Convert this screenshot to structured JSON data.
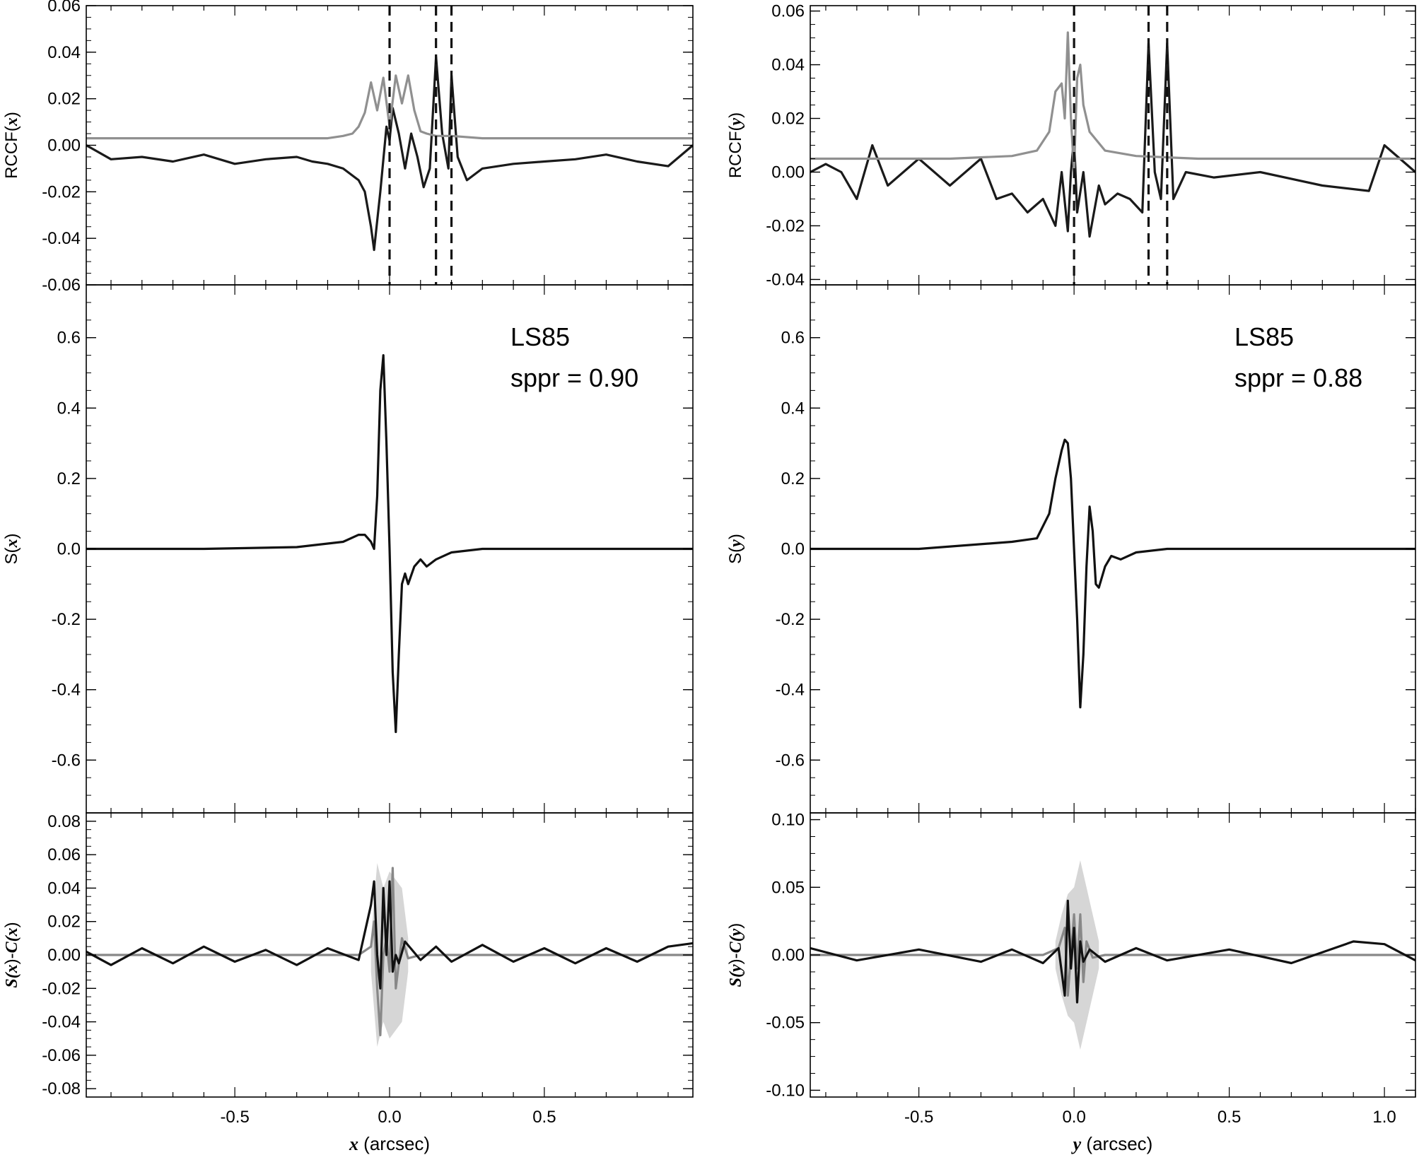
{
  "chart_data": [
    {
      "panel": "top-left",
      "type": "line",
      "ylabel_parts": [
        "RCCF(",
        "x",
        ")"
      ],
      "xlim": [
        -0.98,
        0.98
      ],
      "ylim": [
        -0.06,
        0.06
      ],
      "yticks": [
        "-0.06",
        "-0.04",
        "-0.02",
        "0.00",
        "0.02",
        "0.04",
        "0.06"
      ],
      "vlines": [
        0.0,
        0.15,
        0.2
      ],
      "series": [
        {
          "color": "#1a1a1a",
          "x": [
            -0.98,
            -0.9,
            -0.8,
            -0.7,
            -0.6,
            -0.5,
            -0.4,
            -0.3,
            -0.25,
            -0.2,
            -0.15,
            -0.1,
            -0.08,
            -0.06,
            -0.05,
            -0.03,
            -0.01,
            0.0,
            0.01,
            0.03,
            0.05,
            0.07,
            0.09,
            0.11,
            0.13,
            0.15,
            0.17,
            0.19,
            0.2,
            0.22,
            0.25,
            0.3,
            0.4,
            0.5,
            0.6,
            0.7,
            0.8,
            0.9,
            0.98
          ],
          "y": [
            0.0,
            -0.006,
            -0.005,
            -0.007,
            -0.004,
            -0.008,
            -0.006,
            -0.005,
            -0.007,
            -0.008,
            -0.01,
            -0.015,
            -0.02,
            -0.035,
            -0.045,
            -0.02,
            0.008,
            0.002,
            0.016,
            0.005,
            -0.01,
            0.005,
            -0.005,
            -0.018,
            -0.01,
            0.038,
            0.005,
            -0.01,
            0.03,
            -0.005,
            -0.015,
            -0.01,
            -0.008,
            -0.007,
            -0.006,
            -0.004,
            -0.007,
            -0.009,
            0.0
          ]
        },
        {
          "color": "#909090",
          "x": [
            -0.98,
            -0.5,
            -0.2,
            -0.15,
            -0.12,
            -0.1,
            -0.08,
            -0.06,
            -0.04,
            -0.02,
            0.0,
            0.02,
            0.04,
            0.06,
            0.08,
            0.1,
            0.12,
            0.15,
            0.2,
            0.3,
            0.5,
            0.98
          ],
          "y": [
            0.003,
            0.003,
            0.003,
            0.004,
            0.005,
            0.008,
            0.014,
            0.027,
            0.015,
            0.029,
            0.008,
            0.03,
            0.018,
            0.03,
            0.015,
            0.006,
            0.005,
            0.004,
            0.004,
            0.003,
            0.003,
            0.003
          ]
        }
      ]
    },
    {
      "panel": "middle-left",
      "type": "line",
      "ylabel_parts": [
        "S(",
        "x",
        ")"
      ],
      "annotation": [
        "LS85",
        "sppr = 0.90"
      ],
      "xlim": [
        -0.98,
        0.98
      ],
      "ylim": [
        -0.75,
        0.75
      ],
      "yticks": [
        "-0.6",
        "-0.4",
        "-0.2",
        "0.0",
        "0.2",
        "0.4",
        "0.6"
      ],
      "series": [
        {
          "color": "#111111",
          "x": [
            -0.98,
            -0.6,
            -0.3,
            -0.15,
            -0.1,
            -0.08,
            -0.06,
            -0.05,
            -0.04,
            -0.03,
            -0.02,
            -0.01,
            0.0,
            0.01,
            0.02,
            0.03,
            0.04,
            0.05,
            0.06,
            0.08,
            0.1,
            0.12,
            0.15,
            0.2,
            0.3,
            0.5,
            0.98
          ],
          "y": [
            0.0,
            0.0,
            0.005,
            0.02,
            0.04,
            0.04,
            0.02,
            0.0,
            0.15,
            0.45,
            0.55,
            0.3,
            0.0,
            -0.35,
            -0.52,
            -0.3,
            -0.1,
            -0.07,
            -0.1,
            -0.05,
            -0.03,
            -0.05,
            -0.03,
            -0.01,
            0.0,
            0.0,
            0.0
          ]
        }
      ]
    },
    {
      "panel": "bottom-left",
      "type": "line",
      "ylabel_parts": [
        "S(",
        "x",
        ")-",
        "C(",
        "x",
        ")"
      ],
      "xlim": [
        -0.98,
        0.98
      ],
      "ylim": [
        -0.085,
        0.085
      ],
      "yticks": [
        "-0.08",
        "-0.06",
        "-0.04",
        "-0.02",
        "0.00",
        "0.02",
        "0.04",
        "0.06",
        "0.08"
      ],
      "xticks": [
        "-0.5",
        "0.0",
        "0.5"
      ],
      "xlabel_parts": [
        "x",
        " (arcsec)"
      ],
      "band": {
        "x": [
          -0.06,
          -0.04,
          -0.02,
          0.0,
          0.02,
          0.04,
          0.06
        ],
        "halfwidth": [
          0.01,
          0.055,
          0.04,
          0.05,
          0.045,
          0.04,
          0.01
        ]
      },
      "series": [
        {
          "color": "#888888",
          "x": [
            -0.98,
            -0.1,
            -0.06,
            -0.05,
            -0.04,
            -0.03,
            -0.02,
            -0.01,
            0.0,
            0.01,
            0.02,
            0.03,
            0.04,
            0.06,
            0.1,
            0.98
          ],
          "y": [
            0.0,
            0.0,
            0.005,
            0.02,
            -0.02,
            -0.048,
            0.0,
            0.01,
            -0.01,
            0.052,
            -0.02,
            -0.005,
            0.01,
            -0.002,
            0.0,
            0.0
          ]
        },
        {
          "color": "#111111",
          "x": [
            -0.98,
            -0.9,
            -0.8,
            -0.7,
            -0.6,
            -0.5,
            -0.4,
            -0.3,
            -0.2,
            -0.1,
            -0.06,
            -0.05,
            -0.04,
            -0.03,
            -0.02,
            -0.01,
            0.0,
            0.01,
            0.02,
            0.03,
            0.05,
            0.1,
            0.15,
            0.2,
            0.3,
            0.4,
            0.5,
            0.6,
            0.7,
            0.8,
            0.9,
            0.98
          ],
          "y": [
            0.002,
            -0.006,
            0.004,
            -0.005,
            0.005,
            -0.004,
            0.003,
            -0.006,
            0.004,
            -0.003,
            0.03,
            0.044,
            0.0,
            -0.02,
            0.04,
            0.0,
            0.044,
            -0.01,
            0.0,
            -0.005,
            0.008,
            -0.003,
            0.005,
            -0.004,
            0.006,
            -0.004,
            0.004,
            -0.005,
            0.004,
            -0.004,
            0.005,
            0.007
          ]
        }
      ]
    },
    {
      "panel": "top-right",
      "type": "line",
      "ylabel_parts": [
        "RCCF(",
        "y",
        ")"
      ],
      "xlim": [
        -0.85,
        1.1
      ],
      "ylim": [
        -0.042,
        0.062
      ],
      "yticks": [
        "-0.04",
        "-0.02",
        "0.00",
        "0.02",
        "0.04",
        "0.06"
      ],
      "vlines": [
        0.0,
        0.24,
        0.3
      ],
      "series": [
        {
          "color": "#1a1a1a",
          "x": [
            -0.85,
            -0.8,
            -0.75,
            -0.7,
            -0.65,
            -0.6,
            -0.5,
            -0.4,
            -0.3,
            -0.25,
            -0.2,
            -0.15,
            -0.1,
            -0.06,
            -0.04,
            -0.02,
            -0.01,
            0.0,
            0.01,
            0.03,
            0.05,
            0.08,
            0.1,
            0.14,
            0.18,
            0.22,
            0.24,
            0.26,
            0.28,
            0.3,
            0.32,
            0.36,
            0.45,
            0.6,
            0.8,
            0.95,
            1.0,
            1.1
          ],
          "y": [
            0.0,
            0.003,
            0.0,
            -0.01,
            0.01,
            -0.005,
            0.005,
            -0.005,
            0.005,
            -0.01,
            -0.008,
            -0.015,
            -0.01,
            -0.02,
            0.0,
            -0.022,
            0.0,
            0.013,
            -0.015,
            0.0,
            -0.024,
            -0.005,
            -0.012,
            -0.008,
            -0.01,
            -0.015,
            0.048,
            0.0,
            -0.01,
            0.048,
            -0.01,
            0.0,
            -0.002,
            0.0,
            -0.005,
            -0.007,
            0.01,
            0.0
          ]
        },
        {
          "color": "#909090",
          "x": [
            -0.85,
            -0.4,
            -0.2,
            -0.12,
            -0.08,
            -0.06,
            -0.04,
            -0.03,
            -0.02,
            -0.01,
            0.0,
            0.01,
            0.02,
            0.03,
            0.05,
            0.1,
            0.2,
            0.4,
            1.1
          ],
          "y": [
            0.005,
            0.005,
            0.006,
            0.008,
            0.015,
            0.03,
            0.033,
            0.02,
            0.052,
            0.02,
            0.0,
            0.035,
            0.04,
            0.025,
            0.015,
            0.008,
            0.006,
            0.005,
            0.005
          ]
        }
      ]
    },
    {
      "panel": "middle-right",
      "type": "line",
      "ylabel_parts": [
        "S(",
        "y",
        ")"
      ],
      "annotation": [
        "LS85",
        "sppr = 0.88"
      ],
      "xlim": [
        -0.85,
        1.1
      ],
      "ylim": [
        -0.75,
        0.75
      ],
      "yticks": [
        "-0.6",
        "-0.4",
        "-0.2",
        "0.0",
        "0.2",
        "0.4",
        "0.6"
      ],
      "series": [
        {
          "color": "#111111",
          "x": [
            -0.85,
            -0.5,
            -0.2,
            -0.12,
            -0.08,
            -0.06,
            -0.04,
            -0.03,
            -0.02,
            -0.01,
            0.0,
            0.01,
            0.02,
            0.03,
            0.04,
            0.05,
            0.06,
            0.07,
            0.08,
            0.1,
            0.12,
            0.15,
            0.2,
            0.3,
            0.5,
            1.1
          ],
          "y": [
            0.0,
            0.0,
            0.02,
            0.03,
            0.1,
            0.2,
            0.28,
            0.31,
            0.3,
            0.2,
            0.0,
            -0.2,
            -0.45,
            -0.3,
            -0.05,
            0.12,
            0.05,
            -0.1,
            -0.11,
            -0.05,
            -0.02,
            -0.03,
            -0.01,
            0.0,
            0.0,
            0.0
          ]
        }
      ]
    },
    {
      "panel": "bottom-right",
      "type": "line",
      "ylabel_parts": [
        "S(",
        "y",
        ")-",
        "C(",
        "y",
        ")"
      ],
      "xlim": [
        -0.85,
        1.1
      ],
      "ylim": [
        -0.105,
        0.105
      ],
      "yticks": [
        "-0.10",
        "-0.05",
        "0.00",
        "0.05",
        "0.10"
      ],
      "xticks": [
        "-0.5",
        "0.0",
        "0.5",
        "1.0"
      ],
      "xlabel_parts": [
        "y",
        " (arcsec)"
      ],
      "band": {
        "x": [
          -0.06,
          -0.04,
          -0.02,
          0.0,
          0.02,
          0.04,
          0.06,
          0.08
        ],
        "halfwidth": [
          0.01,
          0.03,
          0.045,
          0.05,
          0.07,
          0.05,
          0.03,
          0.01
        ]
      },
      "series": [
        {
          "color": "#888888",
          "x": [
            -0.85,
            -0.1,
            -0.05,
            -0.03,
            -0.02,
            -0.01,
            0.0,
            0.01,
            0.02,
            0.03,
            0.04,
            0.06,
            0.1,
            1.1
          ],
          "y": [
            0.0,
            0.0,
            0.005,
            0.02,
            -0.03,
            0.0,
            0.03,
            -0.01,
            0.03,
            -0.02,
            0.01,
            -0.002,
            0.0,
            0.0
          ]
        },
        {
          "color": "#111111",
          "x": [
            -0.85,
            -0.7,
            -0.5,
            -0.3,
            -0.2,
            -0.1,
            -0.05,
            -0.03,
            -0.02,
            -0.01,
            0.0,
            0.01,
            0.02,
            0.03,
            0.05,
            0.1,
            0.2,
            0.3,
            0.5,
            0.7,
            0.9,
            1.0,
            1.1
          ],
          "y": [
            0.005,
            -0.004,
            0.004,
            -0.005,
            0.004,
            -0.006,
            0.005,
            -0.03,
            0.04,
            -0.01,
            0.02,
            -0.035,
            0.01,
            -0.005,
            0.004,
            -0.005,
            0.005,
            -0.004,
            0.004,
            -0.006,
            0.01,
            0.008,
            -0.004
          ]
        }
      ]
    }
  ]
}
